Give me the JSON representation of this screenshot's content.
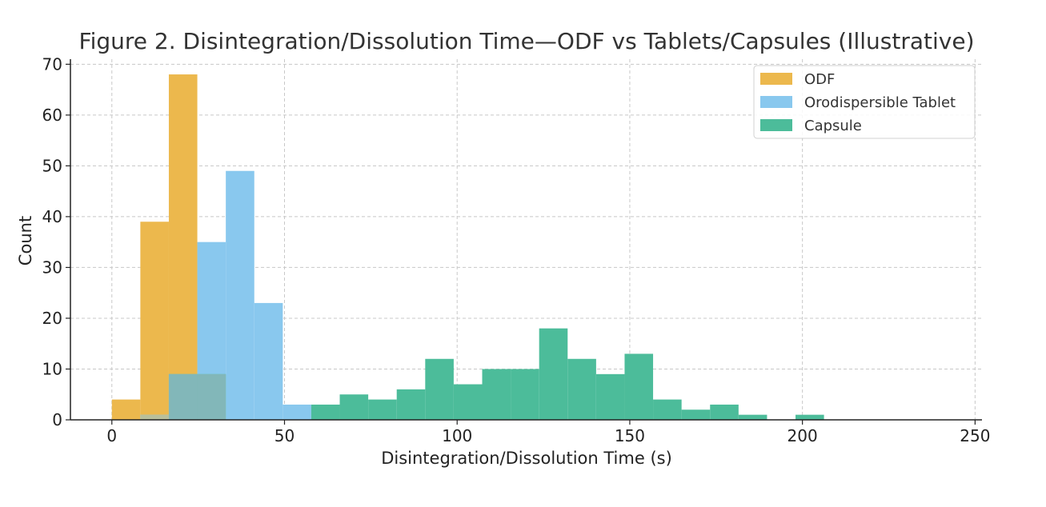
{
  "chart_data": {
    "type": "bar",
    "title": "Figure 2. Disintegration/Dissolution Time—ODF vs Tablets/Capsules (Illustrative)",
    "xlabel": "Disintegration/Dissolution Time (s)",
    "ylabel": "Count",
    "xlim": [
      -12,
      252
    ],
    "ylim": [
      0,
      71
    ],
    "xticks": [
      0,
      50,
      100,
      150,
      200,
      250
    ],
    "yticks": [
      0,
      10,
      20,
      30,
      40,
      50,
      60,
      70
    ],
    "grid": true,
    "legend_position": "top-right",
    "series": [
      {
        "name": "ODF",
        "color": "#ecb84d",
        "opacity": 1.0,
        "bin_edges": [
          0,
          8.25,
          16.5,
          24.75
        ],
        "counts": [
          4,
          39,
          68
        ]
      },
      {
        "name": "Orodispersible Tablet",
        "color": "#89c8ee",
        "opacity": 1.0,
        "bin_edges": [
          8.25,
          16.5,
          24.75,
          33,
          41.25,
          49.5,
          57.75
        ],
        "counts": [
          1,
          9,
          35,
          49,
          23,
          3
        ]
      },
      {
        "name": "Capsule",
        "color": "#4cbc9a",
        "opacity": 1.0,
        "bin_edges": [
          16.5,
          24.75,
          33,
          41.25,
          49.5,
          57.75,
          66,
          74.25,
          82.5,
          90.75,
          99,
          107.25,
          115.5,
          123.75,
          132,
          140.25,
          148.5,
          156.75,
          165,
          173.25,
          181.5,
          189.75,
          198,
          206.25
        ],
        "counts": [
          9,
          9,
          0,
          0,
          0,
          3,
          5,
          4,
          6,
          12,
          7,
          10,
          10,
          18,
          12,
          9,
          13,
          4,
          2,
          3,
          1,
          0,
          1
        ]
      }
    ]
  }
}
